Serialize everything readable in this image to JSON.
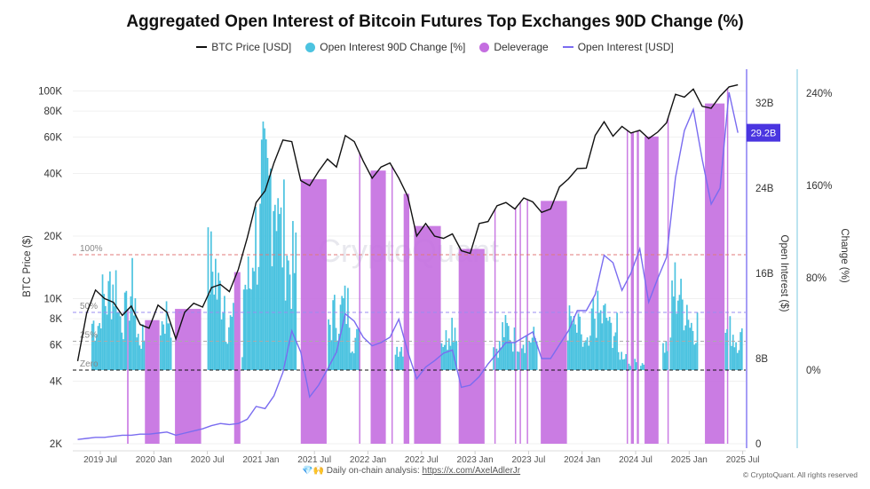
{
  "chart_data": {
    "type": "combo",
    "title": "Aggregated Open Interest of Bitcoin Futures Top Exchanges 90D Change (%)",
    "legend": [
      {
        "name": "BTC Price [USD]",
        "kind": "line",
        "color": "#111111"
      },
      {
        "name": "Open Interest 90D Change [%]",
        "kind": "dot",
        "color": "#4cc3e0"
      },
      {
        "name": "Deleverage",
        "kind": "dot",
        "color": "#c46ee0"
      },
      {
        "name": "Open Interest [USD]",
        "kind": "line",
        "color": "#7a6cf0"
      }
    ],
    "legend_position": "top",
    "x_ticks": [
      "2019 Jul",
      "2020 Jan",
      "2020 Jul",
      "2021 Jan",
      "2021 Jul",
      "2022 Jan",
      "2022 Jul",
      "2023 Jan",
      "2023 Jul",
      "2024 Jan",
      "2024 Jul",
      "2025 Jan",
      "2025 Jul"
    ],
    "y_left": {
      "label": "BTC Price ($)",
      "scale": "log",
      "range": [
        2000,
        120000
      ],
      "ticks": [
        "100K",
        "80K",
        "60K",
        "40K",
        "20K",
        "10K",
        "8K",
        "6K",
        "4K",
        "2K"
      ],
      "tick_values": [
        100000,
        80000,
        60000,
        40000,
        20000,
        10000,
        8000,
        6000,
        4000,
        2000
      ]
    },
    "y_oi": {
      "label": "Open Interest ($)",
      "range": [
        0,
        36
      ],
      "ticks": [
        "32B",
        "24B",
        "16B",
        "8B",
        "0"
      ],
      "tick_values": [
        32,
        24,
        16,
        8,
        0
      ],
      "current_label": "29.2B",
      "color": "#4a35e0"
    },
    "y_change": {
      "label": "Change (%)",
      "range": [
        -63,
        250
      ],
      "ticks": [
        "240%",
        "160%",
        "80%",
        "0%"
      ],
      "tick_values": [
        240,
        160,
        80,
        0
      ]
    },
    "reference_lines": [
      {
        "label": "100%",
        "value": 100,
        "color": "#e07a7a"
      },
      {
        "label": "50%",
        "value": 50,
        "color": "#9a8cf0"
      },
      {
        "label": "25%",
        "value": 25,
        "color": "#aaaaaa"
      },
      {
        "label": "Zero",
        "value": 0,
        "color": "#111111"
      }
    ],
    "grid": true,
    "watermark": "CryptoQuant",
    "categories": [
      "2019-04",
      "2019-05",
      "2019-06",
      "2019-07",
      "2019-08",
      "2019-09",
      "2019-10",
      "2019-11",
      "2019-12",
      "2020-01",
      "2020-02",
      "2020-03",
      "2020-04",
      "2020-05",
      "2020-06",
      "2020-07",
      "2020-08",
      "2020-09",
      "2020-10",
      "2020-11",
      "2020-12",
      "2021-01",
      "2021-02",
      "2021-03",
      "2021-04",
      "2021-05",
      "2021-06",
      "2021-07",
      "2021-08",
      "2021-09",
      "2021-10",
      "2021-11",
      "2021-12",
      "2022-01",
      "2022-02",
      "2022-03",
      "2022-04",
      "2022-05",
      "2022-06",
      "2022-07",
      "2022-08",
      "2022-09",
      "2022-10",
      "2022-11",
      "2022-12",
      "2023-01",
      "2023-02",
      "2023-03",
      "2023-04",
      "2023-05",
      "2023-06",
      "2023-07",
      "2023-08",
      "2023-09",
      "2023-10",
      "2023-11",
      "2023-12",
      "2024-01",
      "2024-02",
      "2024-03",
      "2024-04",
      "2024-05",
      "2024-06",
      "2024-07",
      "2024-08",
      "2024-09",
      "2024-10",
      "2024-11",
      "2024-12",
      "2025-01",
      "2025-02",
      "2025-03",
      "2025-04",
      "2025-05",
      "2025-06"
    ],
    "series": [
      {
        "name": "BTC Price [USD]",
        "axis": "left",
        "values": [
          5000,
          8500,
          11000,
          10000,
          9600,
          8300,
          9200,
          7500,
          7200,
          9300,
          8600,
          6400,
          8600,
          9500,
          9100,
          11300,
          11700,
          10800,
          13800,
          19600,
          29000,
          33000,
          45000,
          58000,
          57000,
          37000,
          35000,
          41000,
          47000,
          43000,
          61000,
          57000,
          46000,
          38000,
          43000,
          45000,
          38000,
          31000,
          20000,
          23000,
          20000,
          19500,
          20500,
          17000,
          16500,
          23000,
          23500,
          28000,
          29000,
          27000,
          30500,
          29200,
          26000,
          27000,
          34500,
          37700,
          42300,
          42500,
          61000,
          71000,
          60500,
          67500,
          62700,
          64600,
          59000,
          63300,
          70200,
          96400,
          93400,
          102000,
          84300,
          82500,
          94200,
          104600,
          107000
        ]
      },
      {
        "name": "Open Interest 90D Change [%]",
        "axis": "change",
        "values": [
          null,
          null,
          60,
          90,
          110,
          70,
          100,
          40,
          -10,
          60,
          70,
          -20,
          -30,
          -20,
          -10,
          130,
          100,
          60,
          20,
          110,
          170,
          220,
          246,
          170,
          130,
          -30,
          -40,
          -20,
          60,
          70,
          80,
          40,
          -10,
          -10,
          15,
          -10,
          30,
          -20,
          -40,
          -30,
          -20,
          40,
          60,
          -40,
          -30,
          -10,
          -5,
          30,
          50,
          40,
          40,
          40,
          -20,
          -20,
          -15,
          60,
          50,
          30,
          70,
          67,
          50,
          20,
          10,
          10,
          -10,
          -10,
          30,
          105,
          85,
          60,
          -20,
          -25,
          -10,
          50,
          40
        ]
      },
      {
        "name": "Open Interest [USD]",
        "axis": "oi",
        "unit": "B",
        "values": [
          0.4,
          0.5,
          0.6,
          0.6,
          0.7,
          0.8,
          0.8,
          0.9,
          0.9,
          1.0,
          1.1,
          0.8,
          1.0,
          1.2,
          1.4,
          1.7,
          1.9,
          1.8,
          1.9,
          2.3,
          3.5,
          3.3,
          4.5,
          6.7,
          10.6,
          8.6,
          4.4,
          5.5,
          7.0,
          8.6,
          12.2,
          11.5,
          10.0,
          9.2,
          9.5,
          10.0,
          11.7,
          8.6,
          6.1,
          7.2,
          7.8,
          8.5,
          8.8,
          5.3,
          5.5,
          6.3,
          7.5,
          8.5,
          9.5,
          9.5,
          10.0,
          10.5,
          8.0,
          8.0,
          9.3,
          10.6,
          12.5,
          12.5,
          14.0,
          17.7,
          17.0,
          14.4,
          16.0,
          18.3,
          13.3,
          15.5,
          17.5,
          25.0,
          29.4,
          31.4,
          26.7,
          22.5,
          24.0,
          33.0,
          29.2
        ]
      }
    ],
    "deleverage_periods": [
      [
        "2019-10-01",
        "2019-10-06"
      ],
      [
        "2019-12-01",
        "2020-01-20"
      ],
      [
        "2020-03-12",
        "2020-06-10"
      ],
      [
        "2020-10-01",
        "2020-10-22"
      ],
      [
        "2021-05-15",
        "2021-08-12"
      ],
      [
        "2021-12-01",
        "2021-12-05"
      ],
      [
        "2022-01-10",
        "2022-03-01"
      ],
      [
        "2022-03-20",
        "2022-03-24"
      ],
      [
        "2022-05-01",
        "2022-05-20"
      ],
      [
        "2022-06-06",
        "2022-09-06"
      ],
      [
        "2022-11-06",
        "2023-02-03"
      ],
      [
        "2023-03-06",
        "2023-03-10"
      ],
      [
        "2023-05-15",
        "2023-05-19"
      ],
      [
        "2023-06-01",
        "2023-06-04"
      ],
      [
        "2023-06-25",
        "2023-06-29"
      ],
      [
        "2023-08-12",
        "2023-11-10"
      ],
      [
        "2024-06-01",
        "2024-06-05"
      ],
      [
        "2024-06-15",
        "2024-06-25"
      ],
      [
        "2024-07-05",
        "2024-07-12"
      ],
      [
        "2024-08-01",
        "2024-09-18"
      ],
      [
        "2024-10-18",
        "2024-10-22"
      ],
      [
        "2025-02-24",
        "2025-04-30"
      ],
      [
        "2025-05-08",
        "2025-05-12"
      ]
    ]
  },
  "footer": {
    "emoji": "💎🙌",
    "text": "Daily on-chain analysis:",
    "link": "https://x.com/AxelAdlerJr",
    "copyright": "© CryptoQuant. All rights reserved"
  }
}
